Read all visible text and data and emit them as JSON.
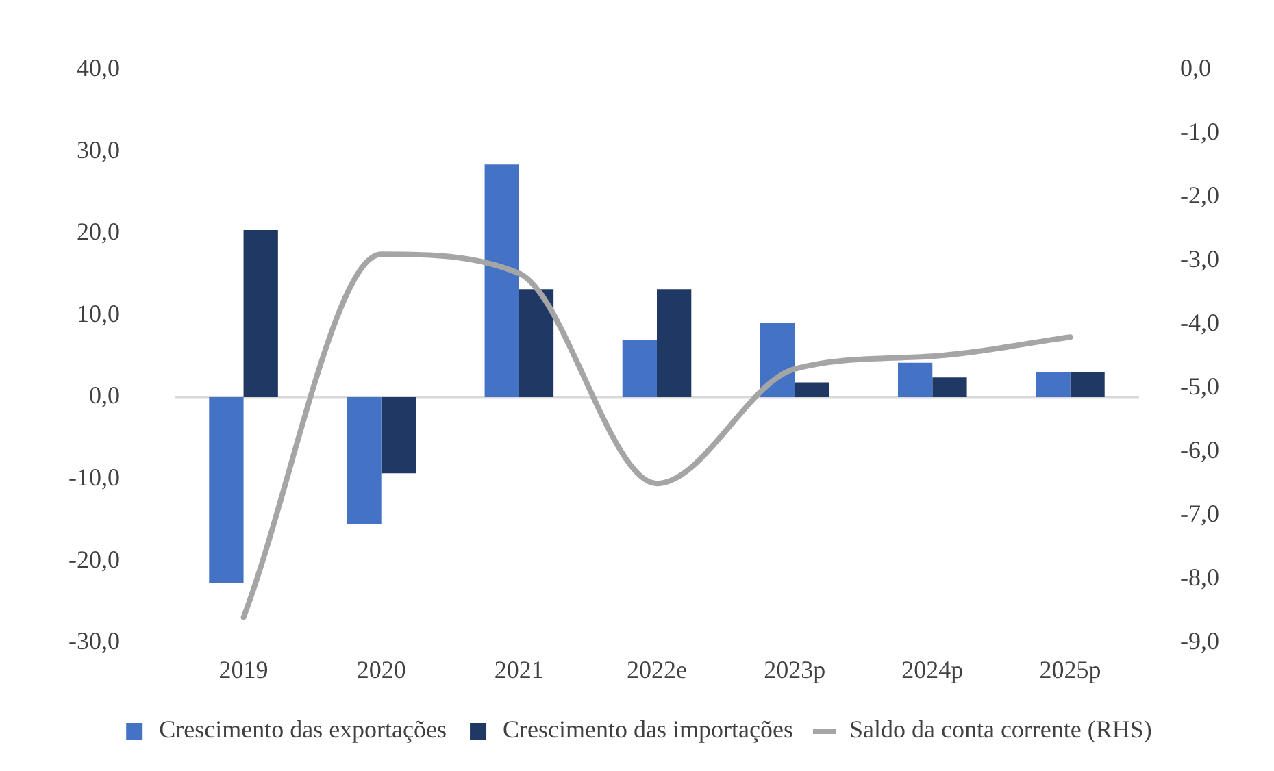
{
  "chart_data": {
    "type": "bar",
    "categories": [
      "2019",
      "2020",
      "2021",
      "2022e",
      "2023p",
      "2024p",
      "2025p"
    ],
    "series": [
      {
        "name": "Crescimento das exportações",
        "color": "#4472c4",
        "values": [
          -22.7,
          -15.5,
          28.4,
          7.0,
          9.1,
          4.2,
          3.1
        ]
      },
      {
        "name": "Crescimento das importações",
        "color": "#1f3864",
        "values": [
          20.4,
          -9.3,
          13.2,
          13.2,
          1.8,
          2.4,
          3.1
        ]
      },
      {
        "name": "Saldo da conta corrente (RHS)",
        "type": "line",
        "axis": "y2",
        "color": "#a5a5a5",
        "values": [
          -8.6,
          -2.9,
          -3.2,
          -6.5,
          -4.7,
          -4.5,
          -4.2
        ]
      }
    ],
    "ylim": [
      -30,
      40
    ],
    "yticks": [
      {
        "value": -30,
        "label": "-30,0"
      },
      {
        "value": -20,
        "label": "-20,0"
      },
      {
        "value": -10,
        "label": "-10,0"
      },
      {
        "value": 0,
        "label": "0,0"
      },
      {
        "value": 10,
        "label": "10,0"
      },
      {
        "value": 20,
        "label": "20,0"
      },
      {
        "value": 30,
        "label": "30,0"
      },
      {
        "value": 40,
        "label": "40,0"
      }
    ],
    "y2lim": [
      -9,
      0
    ],
    "y2ticks": [
      {
        "value": -9,
        "label": "-9,0"
      },
      {
        "value": -8,
        "label": "-8,0"
      },
      {
        "value": -7,
        "label": "-7,0"
      },
      {
        "value": -6,
        "label": "-6,0"
      },
      {
        "value": -5,
        "label": "-5,0"
      },
      {
        "value": -4,
        "label": "-4,0"
      },
      {
        "value": -3,
        "label": "-3,0"
      },
      {
        "value": -2,
        "label": "-2,0"
      },
      {
        "value": -1,
        "label": "-1,0"
      },
      {
        "value": 0,
        "label": "0,0"
      }
    ],
    "grid": false,
    "ref_lines": [
      {
        "axis": "y",
        "value": 0,
        "color": "#d9d9d9"
      }
    ],
    "legend": "bottom",
    "marker": "none"
  }
}
